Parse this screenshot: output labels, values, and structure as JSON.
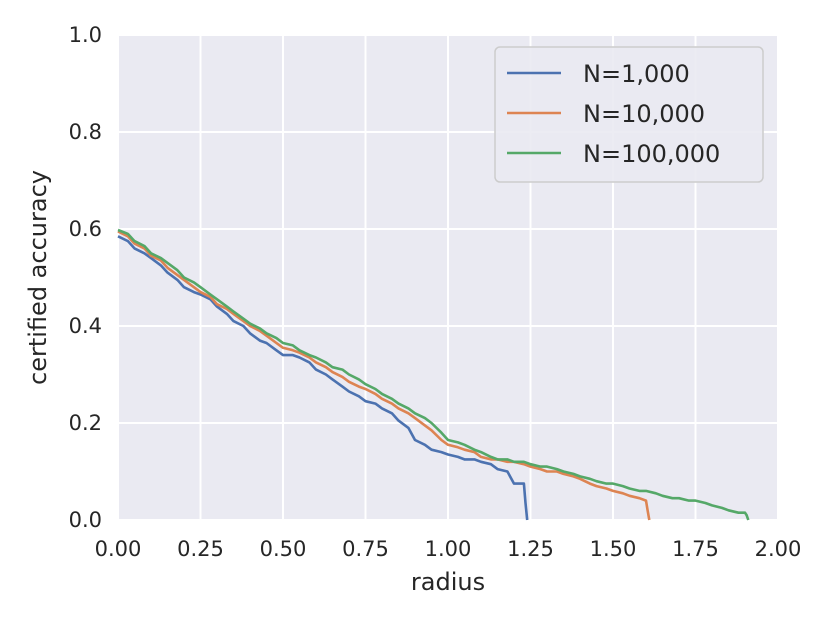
{
  "chart_data": {
    "type": "line",
    "title": "",
    "xlabel": "radius",
    "ylabel": "certified accuracy",
    "xlim": [
      0.0,
      2.0
    ],
    "ylim": [
      0.0,
      1.0
    ],
    "xticks": [
      "0.00",
      "0.25",
      "0.50",
      "0.75",
      "1.00",
      "1.25",
      "1.50",
      "1.75",
      "2.00"
    ],
    "yticks": [
      "0.0",
      "0.2",
      "0.4",
      "0.6",
      "0.8",
      "1.0"
    ],
    "grid": true,
    "legend_position": "top-right",
    "background": "#eaeaf2",
    "series": [
      {
        "name": "N=1,000",
        "color": "#4c72b0",
        "x": [
          0.0,
          0.03,
          0.05,
          0.08,
          0.1,
          0.13,
          0.15,
          0.18,
          0.2,
          0.23,
          0.25,
          0.28,
          0.3,
          0.33,
          0.35,
          0.38,
          0.4,
          0.43,
          0.45,
          0.48,
          0.5,
          0.53,
          0.55,
          0.58,
          0.6,
          0.63,
          0.65,
          0.68,
          0.7,
          0.73,
          0.75,
          0.78,
          0.8,
          0.83,
          0.85,
          0.88,
          0.9,
          0.93,
          0.95,
          0.98,
          1.0,
          1.03,
          1.05,
          1.08,
          1.1,
          1.13,
          1.15,
          1.18,
          1.2,
          1.22,
          1.23,
          1.235,
          1.24
        ],
        "y": [
          0.585,
          0.575,
          0.56,
          0.55,
          0.54,
          0.525,
          0.51,
          0.495,
          0.48,
          0.47,
          0.465,
          0.455,
          0.44,
          0.425,
          0.41,
          0.4,
          0.385,
          0.37,
          0.365,
          0.35,
          0.34,
          0.34,
          0.335,
          0.325,
          0.31,
          0.3,
          0.29,
          0.275,
          0.265,
          0.255,
          0.245,
          0.24,
          0.23,
          0.22,
          0.205,
          0.19,
          0.165,
          0.155,
          0.145,
          0.14,
          0.135,
          0.13,
          0.125,
          0.125,
          0.12,
          0.115,
          0.105,
          0.1,
          0.075,
          0.075,
          0.075,
          0.035,
          0.0
        ]
      },
      {
        "name": "N=10,000",
        "color": "#dd8452",
        "x": [
          0.0,
          0.03,
          0.05,
          0.08,
          0.1,
          0.13,
          0.15,
          0.18,
          0.2,
          0.23,
          0.25,
          0.28,
          0.3,
          0.33,
          0.35,
          0.38,
          0.4,
          0.43,
          0.45,
          0.48,
          0.5,
          0.53,
          0.55,
          0.58,
          0.6,
          0.63,
          0.65,
          0.68,
          0.7,
          0.73,
          0.75,
          0.78,
          0.8,
          0.83,
          0.85,
          0.88,
          0.9,
          0.93,
          0.95,
          0.98,
          1.0,
          1.03,
          1.05,
          1.08,
          1.1,
          1.13,
          1.15,
          1.18,
          1.2,
          1.23,
          1.25,
          1.28,
          1.3,
          1.33,
          1.35,
          1.38,
          1.4,
          1.43,
          1.45,
          1.48,
          1.5,
          1.53,
          1.55,
          1.58,
          1.6,
          1.605,
          1.61
        ],
        "y": [
          0.595,
          0.585,
          0.57,
          0.56,
          0.545,
          0.535,
          0.52,
          0.505,
          0.495,
          0.48,
          0.47,
          0.46,
          0.445,
          0.435,
          0.425,
          0.41,
          0.4,
          0.39,
          0.38,
          0.365,
          0.355,
          0.35,
          0.345,
          0.335,
          0.325,
          0.315,
          0.305,
          0.295,
          0.285,
          0.275,
          0.27,
          0.26,
          0.25,
          0.24,
          0.23,
          0.22,
          0.21,
          0.195,
          0.185,
          0.165,
          0.155,
          0.15,
          0.145,
          0.14,
          0.13,
          0.125,
          0.125,
          0.12,
          0.12,
          0.115,
          0.11,
          0.105,
          0.1,
          0.1,
          0.095,
          0.09,
          0.085,
          0.075,
          0.07,
          0.065,
          0.06,
          0.055,
          0.05,
          0.045,
          0.04,
          0.02,
          0.0
        ]
      },
      {
        "name": "N=100,000",
        "color": "#55a868",
        "x": [
          0.0,
          0.03,
          0.05,
          0.08,
          0.1,
          0.13,
          0.15,
          0.18,
          0.2,
          0.23,
          0.25,
          0.28,
          0.3,
          0.33,
          0.35,
          0.38,
          0.4,
          0.43,
          0.45,
          0.48,
          0.5,
          0.53,
          0.55,
          0.58,
          0.6,
          0.63,
          0.65,
          0.68,
          0.7,
          0.73,
          0.75,
          0.78,
          0.8,
          0.83,
          0.85,
          0.88,
          0.9,
          0.93,
          0.95,
          0.98,
          1.0,
          1.03,
          1.05,
          1.08,
          1.1,
          1.13,
          1.15,
          1.18,
          1.2,
          1.23,
          1.25,
          1.28,
          1.3,
          1.33,
          1.35,
          1.38,
          1.4,
          1.43,
          1.45,
          1.48,
          1.5,
          1.53,
          1.55,
          1.58,
          1.6,
          1.63,
          1.65,
          1.68,
          1.7,
          1.73,
          1.75,
          1.78,
          1.8,
          1.83,
          1.85,
          1.88,
          1.9,
          1.905,
          1.91
        ],
        "y": [
          0.598,
          0.59,
          0.575,
          0.565,
          0.55,
          0.54,
          0.53,
          0.515,
          0.5,
          0.49,
          0.48,
          0.465,
          0.455,
          0.44,
          0.43,
          0.415,
          0.405,
          0.395,
          0.385,
          0.375,
          0.365,
          0.36,
          0.35,
          0.34,
          0.335,
          0.325,
          0.315,
          0.31,
          0.3,
          0.29,
          0.28,
          0.27,
          0.26,
          0.25,
          0.24,
          0.23,
          0.22,
          0.21,
          0.2,
          0.18,
          0.165,
          0.16,
          0.155,
          0.145,
          0.14,
          0.13,
          0.125,
          0.125,
          0.12,
          0.12,
          0.115,
          0.11,
          0.11,
          0.105,
          0.1,
          0.095,
          0.09,
          0.085,
          0.08,
          0.075,
          0.075,
          0.07,
          0.065,
          0.06,
          0.06,
          0.055,
          0.05,
          0.045,
          0.045,
          0.04,
          0.04,
          0.035,
          0.03,
          0.025,
          0.02,
          0.015,
          0.015,
          0.01,
          0.0
        ]
      }
    ]
  }
}
